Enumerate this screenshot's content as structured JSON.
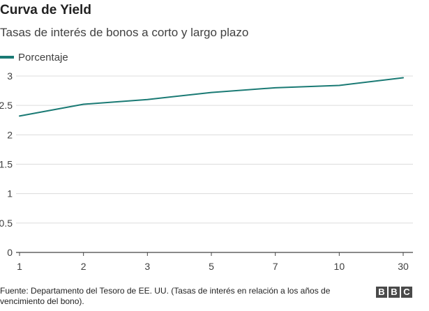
{
  "header": {
    "title": "Curva de Yield",
    "subtitle": "Tasas de interés de bonos a corto y largo plazo"
  },
  "legend": {
    "label": "Porcentaje",
    "color": "#1a7a74"
  },
  "footer": {
    "source": "Fuente: Departamento del Tesoro de EE. UU. (Tasas de interés en relación a los años de vencimiento del bono).",
    "logo_letters": [
      "B",
      "B",
      "C"
    ]
  },
  "chart_data": {
    "type": "line",
    "categories": [
      "1",
      "2",
      "3",
      "5",
      "7",
      "10",
      "30"
    ],
    "series": [
      {
        "name": "Porcentaje",
        "values": [
          2.32,
          2.52,
          2.6,
          2.72,
          2.8,
          2.84,
          2.97
        ]
      }
    ],
    "yticks": [
      "0",
      "0.5",
      "1",
      "1.5",
      "2",
      "2.5",
      "3"
    ],
    "ylim": [
      0,
      3
    ],
    "grid": true,
    "legend_position": "top-left",
    "line_color": "#1a7a74"
  }
}
